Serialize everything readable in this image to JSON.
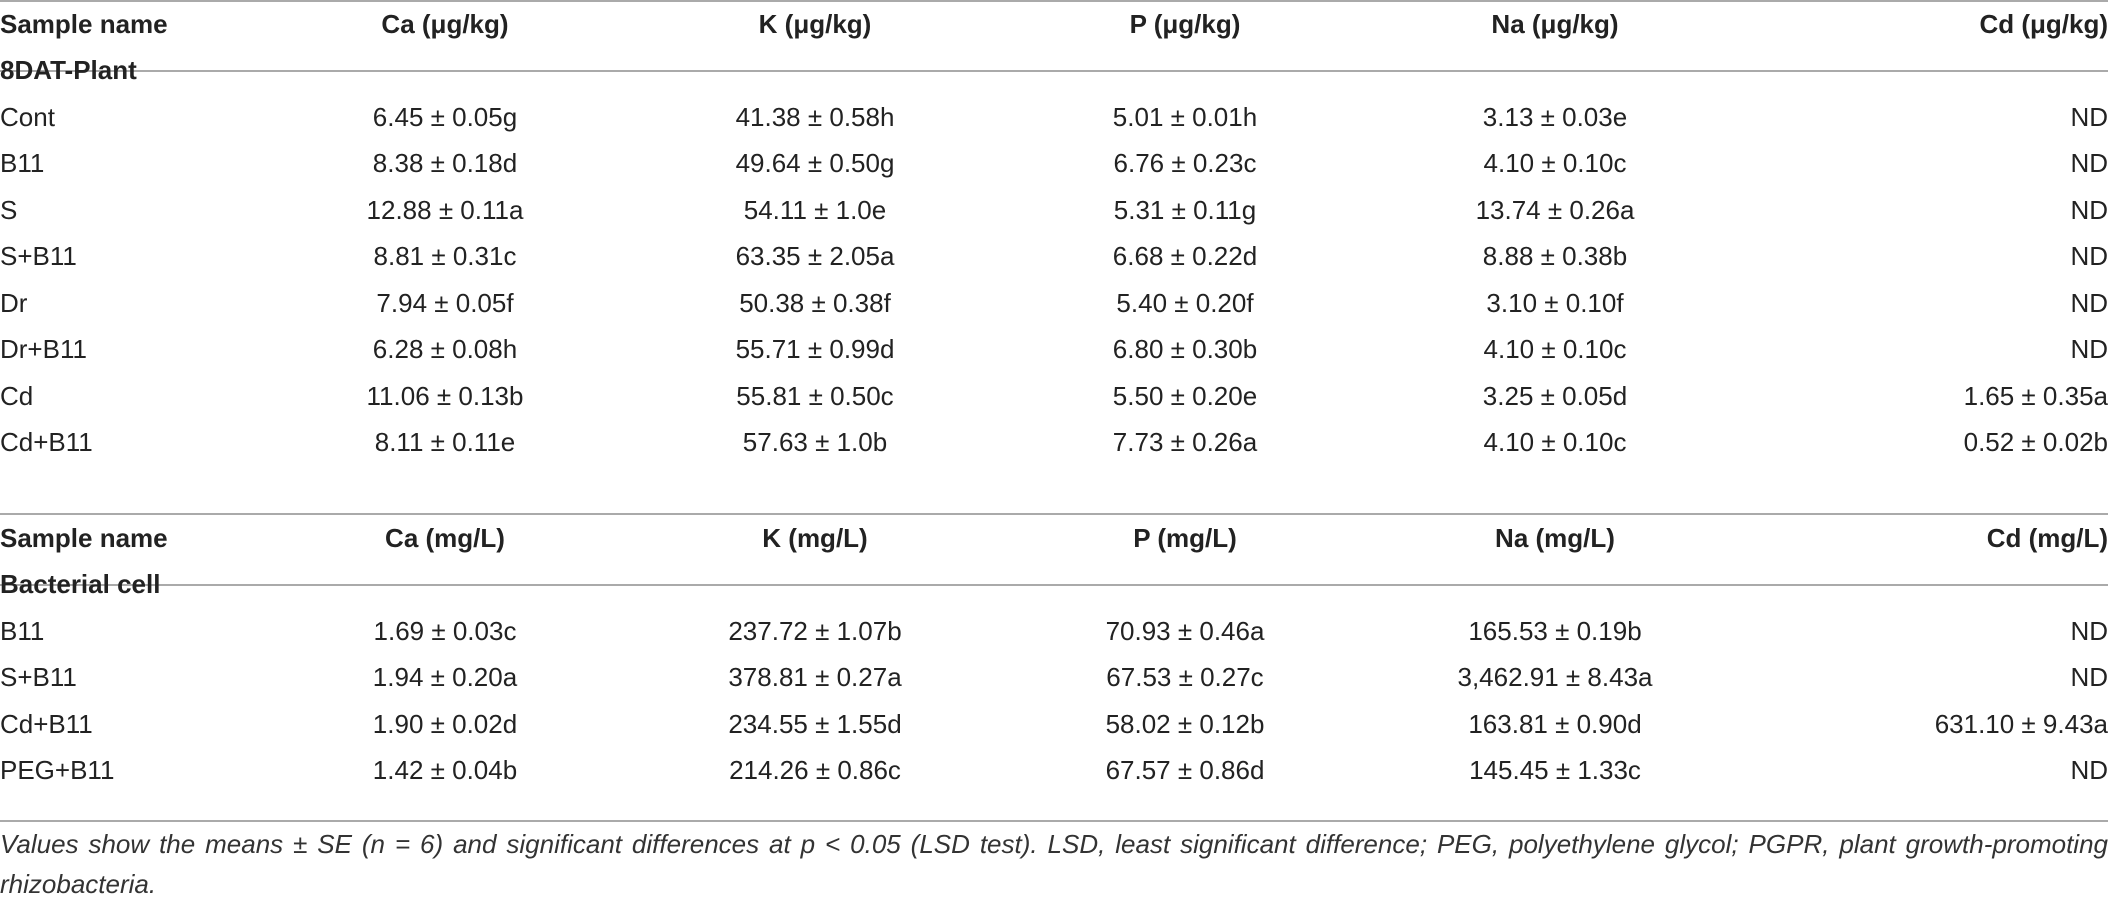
{
  "table1": {
    "headers": [
      "Sample name",
      "Ca (μg/kg)",
      "K (μg/kg)",
      "P (μg/kg)",
      "Na (μg/kg)",
      "Cd (μg/kg)"
    ],
    "group_label": "8DAT-Plant",
    "rows": [
      [
        "Cont",
        "6.45 ± 0.05g",
        "41.38 ± 0.58h",
        "5.01 ± 0.01h",
        "3.13 ± 0.03e",
        "ND"
      ],
      [
        "B11",
        "8.38 ± 0.18d",
        "49.64 ± 0.50g",
        "6.76 ± 0.23c",
        "4.10 ± 0.10c",
        "ND"
      ],
      [
        "S",
        "12.88 ± 0.11a",
        "54.11 ± 1.0e",
        "5.31 ± 0.11g",
        "13.74 ± 0.26a",
        "ND"
      ],
      [
        "S+B11",
        "8.81 ± 0.31c",
        "63.35 ± 2.05a",
        "6.68 ± 0.22d",
        "8.88 ± 0.38b",
        "ND"
      ],
      [
        "Dr",
        "7.94 ± 0.05f",
        "50.38 ± 0.38f",
        "5.40 ± 0.20f",
        "3.10 ± 0.10f",
        "ND"
      ],
      [
        "Dr+B11",
        "6.28 ± 0.08h",
        "55.71 ± 0.99d",
        "6.80 ± 0.30b",
        "4.10 ± 0.10c",
        "ND"
      ],
      [
        "Cd",
        "11.06 ± 0.13b",
        "55.81 ± 0.50c",
        "5.50 ± 0.20e",
        "3.25 ± 0.05d",
        "1.65 ± 0.35a"
      ],
      [
        "Cd+B11",
        "8.11 ± 0.11e",
        "57.63 ± 1.0b",
        "7.73 ± 0.26a",
        "4.10 ± 0.10c",
        "0.52 ± 0.02b"
      ]
    ]
  },
  "table2": {
    "headers": [
      "Sample name",
      "Ca (mg/L)",
      "K (mg/L)",
      "P (mg/L)",
      "Na (mg/L)",
      "Cd (mg/L)"
    ],
    "group_label": "Bacterial cell",
    "rows": [
      [
        "B11",
        "1.69 ± 0.03c",
        "237.72 ± 1.07b",
        "70.93 ± 0.46a",
        "165.53 ± 0.19b",
        "ND"
      ],
      [
        "S+B11",
        "1.94 ± 0.20a",
        "378.81 ± 0.27a",
        "67.53 ± 0.27c",
        "3,462.91 ± 8.43a",
        "ND"
      ],
      [
        "Cd+B11",
        "1.90 ± 0.02d",
        "234.55 ± 1.55d",
        "58.02 ± 0.12b",
        "163.81 ± 0.90d",
        "631.10 ± 9.43a"
      ],
      [
        "PEG+B11",
        "1.42 ± 0.04b",
        "214.26 ± 0.86c",
        "67.57 ± 0.86d",
        "145.45 ± 1.33c",
        "ND"
      ]
    ]
  },
  "footnote": "Values show the means ± SE (n = 6) and significant differences at p < 0.05 (LSD test). LSD, least significant difference; PEG, polyethylene glycol; PGPR, plant growth-promoting rhizobacteria."
}
